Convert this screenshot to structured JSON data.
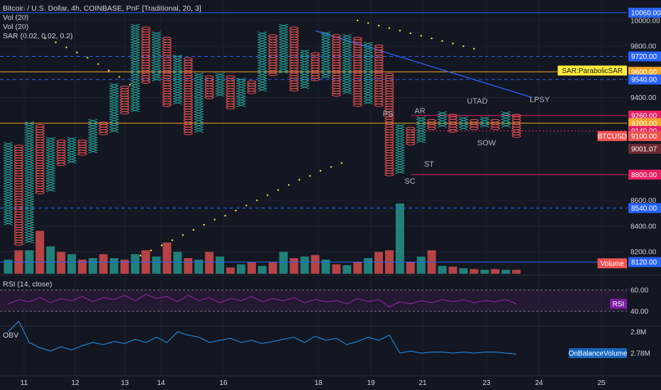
{
  "legend": {
    "symbol_line": "Bitcoin / U.S. Dollar, 4h, COINBASE, PnF [Traditional, 20, 3]",
    "vol1": "Vol (20)",
    "vol2": "Vol (20)",
    "sar": "SAR (0.02, 0.02, 0.2)",
    "rsi": "RSI (14, close)",
    "obv": "OBV"
  },
  "colors": {
    "background": "#131722",
    "up": "#26a69a",
    "down": "#ef5350",
    "grid": "#1e2230",
    "orange": "#f5a623",
    "blue_line": "#2962ff",
    "sar_dot": "#ffeb3b",
    "rsi_line": "#9c27b0",
    "obv_line": "#2196f3",
    "text": "#d1d4dc",
    "pink": "#e91e63"
  },
  "chart_data": [
    {
      "type": "point-and-figure",
      "symbol": "Bitcoin / U.S. Dollar, 4h, COINBASE, PnF [Traditional, 20, 3]",
      "box_size": 20,
      "reversal": 3,
      "y_ticks": [
        8200,
        8400,
        8600,
        9400,
        9600,
        9800,
        10000
      ],
      "x_ticks": [
        "11",
        "12",
        "13",
        "14",
        "16",
        "18",
        "19",
        "21",
        "23",
        "24",
        "25"
      ],
      "columns": [
        {
          "kind": "X",
          "low": 8420,
          "high": 9040
        },
        {
          "kind": "O",
          "low": 8260,
          "high": 9020
        },
        {
          "kind": "X",
          "low": 8280,
          "high": 9200
        },
        {
          "kind": "O",
          "low": 8660,
          "high": 9180
        },
        {
          "kind": "X",
          "low": 8680,
          "high": 9080
        },
        {
          "kind": "O",
          "low": 8880,
          "high": 9060
        },
        {
          "kind": "X",
          "low": 8900,
          "high": 9080
        },
        {
          "kind": "O",
          "low": 8960,
          "high": 9060
        },
        {
          "kind": "X",
          "low": 8980,
          "high": 9220
        },
        {
          "kind": "O",
          "low": 9120,
          "high": 9200
        },
        {
          "kind": "X",
          "low": 9140,
          "high": 9500
        },
        {
          "kind": "O",
          "low": 9280,
          "high": 9480
        },
        {
          "kind": "X",
          "low": 9300,
          "high": 9960
        },
        {
          "kind": "O",
          "low": 9520,
          "high": 9940
        },
        {
          "kind": "X",
          "low": 9540,
          "high": 9900
        },
        {
          "kind": "O",
          "low": 9340,
          "high": 9860
        },
        {
          "kind": "X",
          "low": 9360,
          "high": 9720
        },
        {
          "kind": "O",
          "low": 9120,
          "high": 9700
        },
        {
          "kind": "X",
          "low": 9140,
          "high": 9580
        },
        {
          "kind": "O",
          "low": 9400,
          "high": 9560
        },
        {
          "kind": "X",
          "low": 9420,
          "h": 0,
          "high": 9580
        },
        {
          "kind": "O",
          "low": 9320,
          "high": 9560
        },
        {
          "kind": "X",
          "low": 9340,
          "high": 9540
        },
        {
          "kind": "O",
          "low": 9440,
          "high": 9520
        },
        {
          "kind": "X",
          "low": 9460,
          "high": 9900
        },
        {
          "kind": "O",
          "low": 9580,
          "high": 9880
        },
        {
          "kind": "X",
          "low": 9600,
          "high": 9960
        },
        {
          "kind": "O",
          "low": 9460,
          "high": 9940
        },
        {
          "kind": "X",
          "low": 9480,
          "high": 9760
        },
        {
          "kind": "O",
          "low": 9540,
          "high": 9740
        },
        {
          "kind": "X",
          "low": 9560,
          "high": 9900
        },
        {
          "kind": "O",
          "low": 9420,
          "high": 9880
        },
        {
          "kind": "X",
          "low": 9440,
          "high": 9880
        },
        {
          "kind": "O",
          "low": 9340,
          "high": 9860
        },
        {
          "kind": "X",
          "low": 9360,
          "high": 9820
        },
        {
          "kind": "O",
          "low": 9340,
          "high": 9800
        },
        {
          "kind": "O",
          "low": 8800,
          "high": 9580
        },
        {
          "kind": "X",
          "low": 8820,
          "high": 9180
        },
        {
          "kind": "O",
          "low": 9040,
          "high": 9160
        },
        {
          "kind": "X",
          "low": 9060,
          "high": 9240
        },
        {
          "kind": "O",
          "low": 9160,
          "high": 9220
        },
        {
          "kind": "X",
          "low": 9180,
          "high": 9280
        },
        {
          "kind": "O",
          "low": 9140,
          "high": 9260
        },
        {
          "kind": "X",
          "low": 9160,
          "high": 9240
        },
        {
          "kind": "O",
          "low": 9160,
          "high": 9220
        },
        {
          "kind": "X",
          "low": 9180,
          "high": 9240
        },
        {
          "kind": "O",
          "low": 9160,
          "high": 9220
        },
        {
          "kind": "X",
          "low": 9180,
          "high": 9280
        },
        {
          "kind": "O",
          "low": 9100,
          "high": 9260
        }
      ],
      "volume": [
        18,
        30,
        30,
        55,
        35,
        28,
        25,
        18,
        20,
        25,
        20,
        18,
        25,
        30,
        22,
        40,
        28,
        20,
        18,
        28,
        22,
        8,
        12,
        15,
        10,
        15,
        28,
        20,
        22,
        24,
        18,
        12,
        11,
        15,
        20,
        28,
        30,
        90,
        15,
        22,
        30,
        10,
        9,
        7,
        6,
        5,
        6,
        5,
        5
      ],
      "price_levels": [
        {
          "value": 10060,
          "label": "10060.00",
          "style": "solid",
          "color": "#2962ff"
        },
        {
          "value": 9720,
          "label": "9720.00",
          "style": "dashed",
          "color": "#2962ff"
        },
        {
          "value": 9600,
          "label": "9600.00",
          "style": "solid",
          "color": "#f5a623"
        },
        {
          "value": 9540,
          "label": "9540.00",
          "style": "dashed",
          "color": "#2962ff"
        },
        {
          "value": 9260,
          "label": "9260.00",
          "style": "solid",
          "color": "#e91e63"
        },
        {
          "value": 9200,
          "label": "9200.00",
          "style": "solid",
          "color": "#f5a623"
        },
        {
          "value": 9140,
          "label": "9140.00",
          "style": "dotted",
          "color": "#e91e63"
        },
        {
          "value": 9100,
          "label": "9100.00",
          "style": "none",
          "color": "#ef5350"
        },
        {
          "value": 9001.07,
          "label": "9001.07",
          "style": "none",
          "color": "#7d2c33"
        },
        {
          "value": 8800,
          "label": "8800.00",
          "style": "solid",
          "color": "#e91e63"
        },
        {
          "value": 8540,
          "label": "8540.00",
          "style": "dashed",
          "color": "#2962ff"
        },
        {
          "value": 8120,
          "label": "8120.00",
          "style": "solid",
          "color": "#2962ff"
        }
      ],
      "axis_badges": [
        {
          "label": "SAR:ParabolicSAR",
          "value": 9610
        },
        {
          "label": "BTCUSD",
          "value": 9100
        },
        {
          "label": "Volume",
          "value": 8110
        }
      ],
      "annotations": [
        "PS",
        "AR",
        "SC",
        "ST",
        "UTAD",
        "LPSY",
        "SOW"
      ],
      "trendline": {
        "from": {
          "col": 29,
          "value": 9920
        },
        "to": {
          "col": 49.5,
          "value": 9400
        }
      },
      "sar": [
        {
          "col": 3.5,
          "value": 9860
        },
        {
          "col": 4.5,
          "value": 9830
        },
        {
          "col": 5.5,
          "value": 9790
        },
        {
          "col": 6.5,
          "value": 9750
        },
        {
          "col": 7.5,
          "value": 9710
        },
        {
          "col": 8.5,
          "value": 9660
        },
        {
          "col": 9.5,
          "value": 9610
        },
        {
          "col": 10.5,
          "value": 9560
        },
        {
          "col": 11.5,
          "value": 9500
        },
        {
          "col": 12.5,
          "value": 8170
        },
        {
          "col": 13.5,
          "value": 8210
        },
        {
          "col": 14.5,
          "value": 8250
        },
        {
          "col": 15.5,
          "value": 8290
        },
        {
          "col": 16.5,
          "value": 8330
        },
        {
          "col": 17.5,
          "value": 8370
        },
        {
          "col": 18.5,
          "value": 8410
        },
        {
          "col": 19.5,
          "value": 8450
        },
        {
          "col": 20.5,
          "value": 8480
        },
        {
          "col": 21.5,
          "value": 8520
        },
        {
          "col": 22.5,
          "value": 8560
        },
        {
          "col": 23.5,
          "value": 8600
        },
        {
          "col": 24.5,
          "value": 8640
        },
        {
          "col": 25.5,
          "value": 8680
        },
        {
          "col": 26.5,
          "value": 8720
        },
        {
          "col": 27.5,
          "value": 8760
        },
        {
          "col": 28.5,
          "value": 8790
        },
        {
          "col": 29.5,
          "value": 8830
        },
        {
          "col": 30.5,
          "value": 8860
        },
        {
          "col": 31.5,
          "value": 8890
        },
        {
          "col": 33,
          "value": 10000
        },
        {
          "col": 34,
          "value": 9980
        },
        {
          "col": 35,
          "value": 9960
        },
        {
          "col": 36,
          "value": 9940
        },
        {
          "col": 37,
          "value": 9920
        },
        {
          "col": 38,
          "value": 9900
        },
        {
          "col": 39,
          "value": 9880
        },
        {
          "col": 40,
          "value": 9860
        },
        {
          "col": 41,
          "value": 9840
        },
        {
          "col": 42,
          "value": 9820
        },
        {
          "col": 43,
          "value": 9800
        },
        {
          "col": 44,
          "value": 9780
        }
      ]
    },
    {
      "type": "line",
      "name": "RSI (14, close)",
      "y_ticks": [
        60,
        40
      ],
      "badge": "RSI",
      "values": [
        47,
        51,
        49,
        53,
        48,
        52,
        50,
        54,
        49,
        53,
        51,
        55,
        50,
        56,
        52,
        54,
        49,
        55,
        50,
        53,
        48,
        52,
        50,
        54,
        49,
        52,
        50,
        53,
        48,
        51,
        49,
        50,
        47,
        52,
        49,
        51,
        44,
        49,
        47,
        50,
        48,
        51,
        49,
        51,
        48,
        50,
        49,
        51,
        47
      ]
    },
    {
      "type": "line",
      "name": "OBV",
      "y_ticks": [
        "2.8M",
        "2.78M"
      ],
      "badge": "OnBalanceVolume",
      "values": [
        2.8,
        2.81,
        2.79,
        2.785,
        2.782,
        2.786,
        2.783,
        2.787,
        2.79,
        2.788,
        2.791,
        2.789,
        2.793,
        2.79,
        2.795,
        2.79,
        2.8,
        2.797,
        2.795,
        2.79,
        2.792,
        2.794,
        2.79,
        2.792,
        2.789,
        2.791,
        2.793,
        2.795,
        2.79,
        2.796,
        2.792,
        2.794,
        2.788,
        2.791,
        2.795,
        2.792,
        2.797,
        2.78,
        2.782,
        2.78,
        2.781,
        2.781,
        2.78,
        2.781,
        2.78,
        2.781,
        2.781,
        2.78,
        2.779
      ]
    }
  ]
}
